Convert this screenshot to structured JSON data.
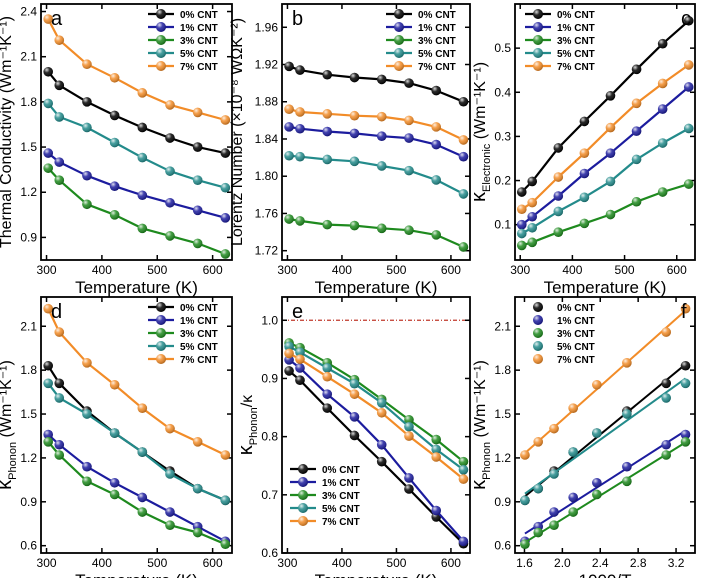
{
  "figure": {
    "colors": {
      "0%": "#000000",
      "1%": "#1c1c9e",
      "3%": "#1e8a1e",
      "5%": "#238b8b",
      "7%": "#f28c28"
    },
    "series_names": [
      "0% CNT",
      "1% CNT",
      "3% CNT",
      "5% CNT",
      "7% CNT"
    ]
  },
  "chart_data": [
    {
      "id": "a",
      "type": "line",
      "panel_label": "a",
      "xlabel": "Temperature (K)",
      "ylabel": "Thermal Conductivity (Wm⁻¹K⁻¹)",
      "xlim": [
        290,
        635
      ],
      "ylim": [
        0.75,
        2.45
      ],
      "xticks": [
        300,
        400,
        500,
        600
      ],
      "yticks": [
        0.9,
        1.2,
        1.5,
        1.8,
        2.1,
        2.4
      ],
      "ytick_labels": [
        "0.9",
        "1.2",
        "1.5",
        "1.8",
        "2.1",
        "2.4"
      ],
      "legend_position": "top-right",
      "x": [
        303,
        323,
        373,
        423,
        473,
        523,
        573,
        623
      ],
      "series": [
        {
          "name": "0% CNT",
          "values": [
            2.0,
            1.91,
            1.8,
            1.71,
            1.63,
            1.56,
            1.5,
            1.46
          ]
        },
        {
          "name": "1% CNT",
          "values": [
            1.46,
            1.4,
            1.31,
            1.24,
            1.18,
            1.13,
            1.08,
            1.03
          ]
        },
        {
          "name": "3% CNT",
          "values": [
            1.36,
            1.28,
            1.12,
            1.05,
            0.96,
            0.91,
            0.86,
            0.79
          ]
        },
        {
          "name": "5% CNT",
          "values": [
            1.79,
            1.7,
            1.63,
            1.53,
            1.43,
            1.34,
            1.28,
            1.23
          ]
        },
        {
          "name": "7% CNT",
          "values": [
            2.35,
            2.21,
            2.05,
            1.96,
            1.86,
            1.78,
            1.73,
            1.68
          ]
        }
      ]
    },
    {
      "id": "b",
      "type": "line",
      "panel_label": "b",
      "xlabel": "Temperature (K)",
      "ylabel": "Lorentz Number (×10⁻⁸ WΩK⁻²)",
      "xlim": [
        290,
        635
      ],
      "ylim": [
        1.71,
        1.985
      ],
      "xticks": [
        300,
        400,
        500,
        600
      ],
      "yticks": [
        1.72,
        1.76,
        1.8,
        1.84,
        1.88,
        1.92,
        1.96
      ],
      "ytick_labels": [
        "1.72",
        "1.76",
        "1.80",
        "1.84",
        "1.88",
        "1.92",
        "1.96"
      ],
      "legend_position": "top-right",
      "x": [
        303,
        323,
        373,
        423,
        473,
        523,
        573,
        623
      ],
      "series": [
        {
          "name": "0% CNT",
          "values": [
            1.918,
            1.914,
            1.909,
            1.906,
            1.904,
            1.9,
            1.892,
            1.88
          ]
        },
        {
          "name": "1% CNT",
          "values": [
            1.853,
            1.851,
            1.848,
            1.846,
            1.843,
            1.841,
            1.834,
            1.821
          ]
        },
        {
          "name": "3% CNT",
          "values": [
            1.754,
            1.752,
            1.748,
            1.747,
            1.744,
            1.742,
            1.737,
            1.724
          ]
        },
        {
          "name": "5% CNT",
          "values": [
            1.822,
            1.821,
            1.818,
            1.816,
            1.811,
            1.806,
            1.796,
            1.781
          ]
        },
        {
          "name": "7% CNT",
          "values": [
            1.872,
            1.869,
            1.867,
            1.865,
            1.864,
            1.86,
            1.853,
            1.839
          ]
        }
      ]
    },
    {
      "id": "c",
      "type": "line",
      "panel_label": "c",
      "xlabel": "Temperature (K)",
      "ylabel": "κ",
      "ylabel_sub": "Electronic",
      "ylabel_tail": " (Wm⁻¹K⁻¹)",
      "xlim": [
        290,
        635
      ],
      "ylim": [
        0.02,
        0.6
      ],
      "xticks": [
        300,
        400,
        500,
        600
      ],
      "yticks": [
        0.1,
        0.2,
        0.3,
        0.4,
        0.5
      ],
      "ytick_labels": [
        "0.1",
        "0.2",
        "0.3",
        "0.4",
        "0.5"
      ],
      "legend_position": "top-left",
      "x": [
        303,
        323,
        373,
        423,
        473,
        523,
        573,
        623
      ],
      "series": [
        {
          "name": "0% CNT",
          "values": [
            0.174,
            0.198,
            0.274,
            0.334,
            0.392,
            0.452,
            0.51,
            0.562
          ]
        },
        {
          "name": "1% CNT",
          "values": [
            0.1,
            0.118,
            0.165,
            0.216,
            0.262,
            0.312,
            0.362,
            0.412
          ]
        },
        {
          "name": "3% CNT",
          "values": [
            0.053,
            0.06,
            0.083,
            0.103,
            0.123,
            0.152,
            0.174,
            0.192
          ]
        },
        {
          "name": "5% CNT",
          "values": [
            0.08,
            0.093,
            0.13,
            0.162,
            0.198,
            0.248,
            0.285,
            0.318
          ]
        },
        {
          "name": "7% CNT",
          "values": [
            0.135,
            0.15,
            0.208,
            0.262,
            0.32,
            0.375,
            0.42,
            0.462
          ]
        }
      ]
    },
    {
      "id": "d",
      "type": "line",
      "panel_label": "d",
      "xlabel": "Temperature (K)",
      "ylabel": "κ",
      "ylabel_sub": "Phonon",
      "ylabel_tail": " (Wm⁻¹K⁻¹)",
      "xlim": [
        290,
        635
      ],
      "ylim": [
        0.55,
        2.3
      ],
      "xticks": [
        300,
        400,
        500,
        600
      ],
      "yticks": [
        0.6,
        0.9,
        1.2,
        1.5,
        1.8,
        2.1
      ],
      "ytick_labels": [
        "0.6",
        "0.9",
        "1.2",
        "1.5",
        "1.8",
        "2.1"
      ],
      "legend_position": "top-right",
      "x": [
        303,
        323,
        373,
        423,
        473,
        523,
        573,
        623
      ],
      "series": [
        {
          "name": "0% CNT",
          "values": [
            1.83,
            1.71,
            1.52,
            1.37,
            1.24,
            1.11,
            0.99,
            0.91
          ]
        },
        {
          "name": "1% CNT",
          "values": [
            1.36,
            1.29,
            1.14,
            1.03,
            0.93,
            0.83,
            0.73,
            0.63
          ]
        },
        {
          "name": "3% CNT",
          "values": [
            1.31,
            1.22,
            1.04,
            0.95,
            0.83,
            0.74,
            0.69,
            0.61
          ]
        },
        {
          "name": "5% CNT",
          "values": [
            1.71,
            1.61,
            1.5,
            1.37,
            1.24,
            1.09,
            0.99,
            0.91
          ]
        },
        {
          "name": "7% CNT",
          "values": [
            2.22,
            2.06,
            1.85,
            1.7,
            1.54,
            1.4,
            1.31,
            1.22
          ]
        }
      ]
    },
    {
      "id": "e",
      "type": "line",
      "panel_label": "e",
      "xlabel": "Temperature (K)",
      "ylabel": "κ",
      "ylabel_sub": "Phonon",
      "ylabel_tail": "/κ",
      "xlim": [
        290,
        635
      ],
      "ylim": [
        0.6,
        1.04
      ],
      "xticks": [
        300,
        400,
        500,
        600
      ],
      "yticks": [
        0.6,
        0.7,
        0.8,
        0.9,
        1.0
      ],
      "ytick_labels": [
        "0.6",
        "0.7",
        "0.8",
        "0.9",
        "1.0"
      ],
      "legend_position": "bottom-left",
      "reference_line": 1.0,
      "x": [
        303,
        323,
        373,
        423,
        473,
        523,
        573,
        623
      ],
      "series": [
        {
          "name": "0% CNT",
          "values": [
            0.913,
            0.897,
            0.849,
            0.802,
            0.757,
            0.71,
            0.662,
            0.616
          ]
        },
        {
          "name": "1% CNT",
          "values": [
            0.932,
            0.918,
            0.873,
            0.834,
            0.786,
            0.729,
            0.673,
            0.62
          ]
        },
        {
          "name": "3% CNT",
          "values": [
            0.961,
            0.953,
            0.927,
            0.898,
            0.864,
            0.829,
            0.795,
            0.757
          ]
        },
        {
          "name": "5% CNT",
          "values": [
            0.955,
            0.945,
            0.918,
            0.891,
            0.858,
            0.817,
            0.778,
            0.743
          ]
        },
        {
          "name": "7% CNT",
          "values": [
            0.943,
            0.933,
            0.903,
            0.873,
            0.841,
            0.801,
            0.765,
            0.727
          ]
        }
      ]
    },
    {
      "id": "f",
      "type": "scatter",
      "panel_label": "f",
      "xlabel": "1000/T",
      "ylabel": "κ",
      "ylabel_sub": "Phonon",
      "ylabel_tail": " (Wm⁻¹K⁻¹)",
      "xlim": [
        1.5,
        3.4
      ],
      "ylim": [
        0.55,
        2.3
      ],
      "xticks": [
        1.6,
        2.0,
        2.4,
        2.8,
        3.2
      ],
      "yticks": [
        0.6,
        0.9,
        1.2,
        1.5,
        1.8,
        2.1
      ],
      "xtick_labels": [
        "1.6",
        "2.0",
        "2.4",
        "2.8",
        "3.2"
      ],
      "ytick_labels": [
        "0.6",
        "0.9",
        "1.2",
        "1.5",
        "1.8",
        "2.1"
      ],
      "legend_position": "top-left",
      "fit": "linear",
      "x": [
        1.605,
        1.745,
        1.912,
        2.114,
        2.364,
        2.681,
        3.096,
        3.3
      ],
      "series": [
        {
          "name": "0% CNT",
          "values": [
            0.91,
            0.99,
            1.11,
            1.24,
            1.37,
            1.52,
            1.71,
            1.83
          ]
        },
        {
          "name": "1% CNT",
          "values": [
            0.63,
            0.73,
            0.83,
            0.93,
            1.03,
            1.14,
            1.29,
            1.36
          ]
        },
        {
          "name": "3% CNT",
          "values": [
            0.61,
            0.69,
            0.74,
            0.83,
            0.95,
            1.04,
            1.22,
            1.31
          ]
        },
        {
          "name": "5% CNT",
          "values": [
            0.91,
            0.99,
            1.09,
            1.24,
            1.37,
            1.5,
            1.61,
            1.71
          ]
        },
        {
          "name": "7% CNT",
          "values": [
            1.22,
            1.31,
            1.4,
            1.54,
            1.7,
            1.85,
            2.06,
            2.22
          ]
        }
      ]
    }
  ]
}
